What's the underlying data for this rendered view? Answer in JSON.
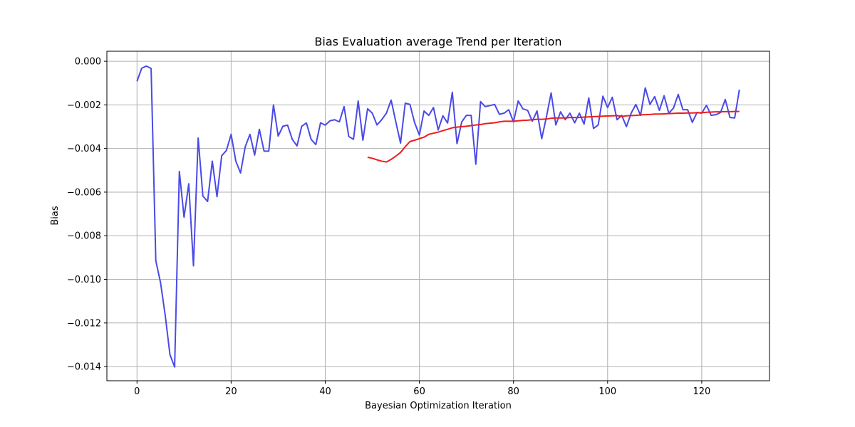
{
  "chart_data": {
    "type": "line",
    "title": "Bias Evaluation average Trend per Iteration",
    "xlabel": "Bayesian Optimization Iteration",
    "ylabel": "Bias",
    "xlim": [
      -6.4,
      134.4
    ],
    "ylim": [
      -0.01465,
      0.00046
    ],
    "x_ticks": [
      0,
      20,
      40,
      60,
      80,
      100,
      120
    ],
    "x_tick_labels": [
      "0",
      "20",
      "40",
      "60",
      "80",
      "100",
      "120"
    ],
    "y_ticks": [
      0.0,
      -0.002,
      -0.004,
      -0.006,
      -0.008,
      -0.01,
      -0.012,
      -0.014
    ],
    "y_tick_labels": [
      "0.000",
      "−0.002",
      "−0.004",
      "−0.006",
      "−0.008",
      "−0.010",
      "−0.012",
      "−0.014"
    ],
    "grid": true,
    "series": [
      {
        "color": "#4a4ae8",
        "x_start": 0,
        "values": [
          -0.00092,
          -0.00032,
          -0.00022,
          -0.00033,
          -0.00915,
          -0.01015,
          -0.01165,
          -0.01345,
          -0.01402,
          -0.00505,
          -0.00715,
          -0.00562,
          -0.00938,
          -0.00352,
          -0.00618,
          -0.00643,
          -0.00458,
          -0.00621,
          -0.00433,
          -0.00409,
          -0.00335,
          -0.00458,
          -0.00512,
          -0.00392,
          -0.00335,
          -0.0043,
          -0.00312,
          -0.00412,
          -0.00412,
          -0.002,
          -0.00343,
          -0.00298,
          -0.00293,
          -0.00358,
          -0.00388,
          -0.00298,
          -0.00283,
          -0.00358,
          -0.00382,
          -0.00282,
          -0.00293,
          -0.00273,
          -0.00268,
          -0.00278,
          -0.00208,
          -0.00345,
          -0.00358,
          -0.00182,
          -0.00362,
          -0.00218,
          -0.00238,
          -0.00292,
          -0.00268,
          -0.00238,
          -0.00178,
          -0.00278,
          -0.00375,
          -0.00192,
          -0.00198,
          -0.00282,
          -0.00338,
          -0.00228,
          -0.00248,
          -0.00212,
          -0.00315,
          -0.0025,
          -0.00283,
          -0.00142,
          -0.00378,
          -0.00278,
          -0.00248,
          -0.00248,
          -0.00472,
          -0.00185,
          -0.00208,
          -0.00203,
          -0.00198,
          -0.00243,
          -0.00238,
          -0.00222,
          -0.00278,
          -0.00182,
          -0.00218,
          -0.00225,
          -0.00275,
          -0.00228,
          -0.00355,
          -0.00255,
          -0.00145,
          -0.00292,
          -0.00232,
          -0.00268,
          -0.00238,
          -0.00282,
          -0.00238,
          -0.00288,
          -0.00168,
          -0.00308,
          -0.00292,
          -0.0016,
          -0.00212,
          -0.00165,
          -0.00268,
          -0.00248,
          -0.003,
          -0.00238,
          -0.00198,
          -0.00248,
          -0.00122,
          -0.00198,
          -0.00162,
          -0.00225,
          -0.00158,
          -0.00238,
          -0.00215,
          -0.00152,
          -0.00222,
          -0.00222,
          -0.0028,
          -0.00235,
          -0.00238,
          -0.00202,
          -0.00248,
          -0.00245,
          -0.00235,
          -0.00175,
          -0.00258,
          -0.0026,
          -0.0013
        ]
      },
      {
        "color": "#ee1c1c",
        "x_start": 49,
        "values": [
          -0.0044,
          -0.00445,
          -0.00452,
          -0.00458,
          -0.00462,
          -0.0045,
          -0.00435,
          -0.00418,
          -0.00392,
          -0.00368,
          -0.00362,
          -0.00355,
          -0.00348,
          -0.00335,
          -0.0033,
          -0.00325,
          -0.00318,
          -0.00312,
          -0.00305,
          -0.00302,
          -0.003,
          -0.00298,
          -0.00295,
          -0.00292,
          -0.0029,
          -0.00286,
          -0.00284,
          -0.00282,
          -0.00278,
          -0.00275,
          -0.00275,
          -0.00275,
          -0.00273,
          -0.00271,
          -0.0027,
          -0.00268,
          -0.00266,
          -0.00266,
          -0.00265,
          -0.00261,
          -0.0026,
          -0.0026,
          -0.0026,
          -0.00258,
          -0.00258,
          -0.00258,
          -0.00256,
          -0.00255,
          -0.00254,
          -0.00253,
          -0.00252,
          -0.00251,
          -0.0025,
          -0.00249,
          -0.00253,
          -0.0025,
          -0.00249,
          -0.00248,
          -0.00246,
          -0.00245,
          -0.00244,
          -0.00242,
          -0.00242,
          -0.00241,
          -0.0024,
          -0.00239,
          -0.00238,
          -0.00238,
          -0.00237,
          -0.00237,
          -0.00236,
          -0.00236,
          -0.00234,
          -0.00233,
          -0.00232,
          -0.00232,
          -0.00231,
          -0.00231,
          -0.0023,
          -0.0023
        ]
      }
    ]
  }
}
